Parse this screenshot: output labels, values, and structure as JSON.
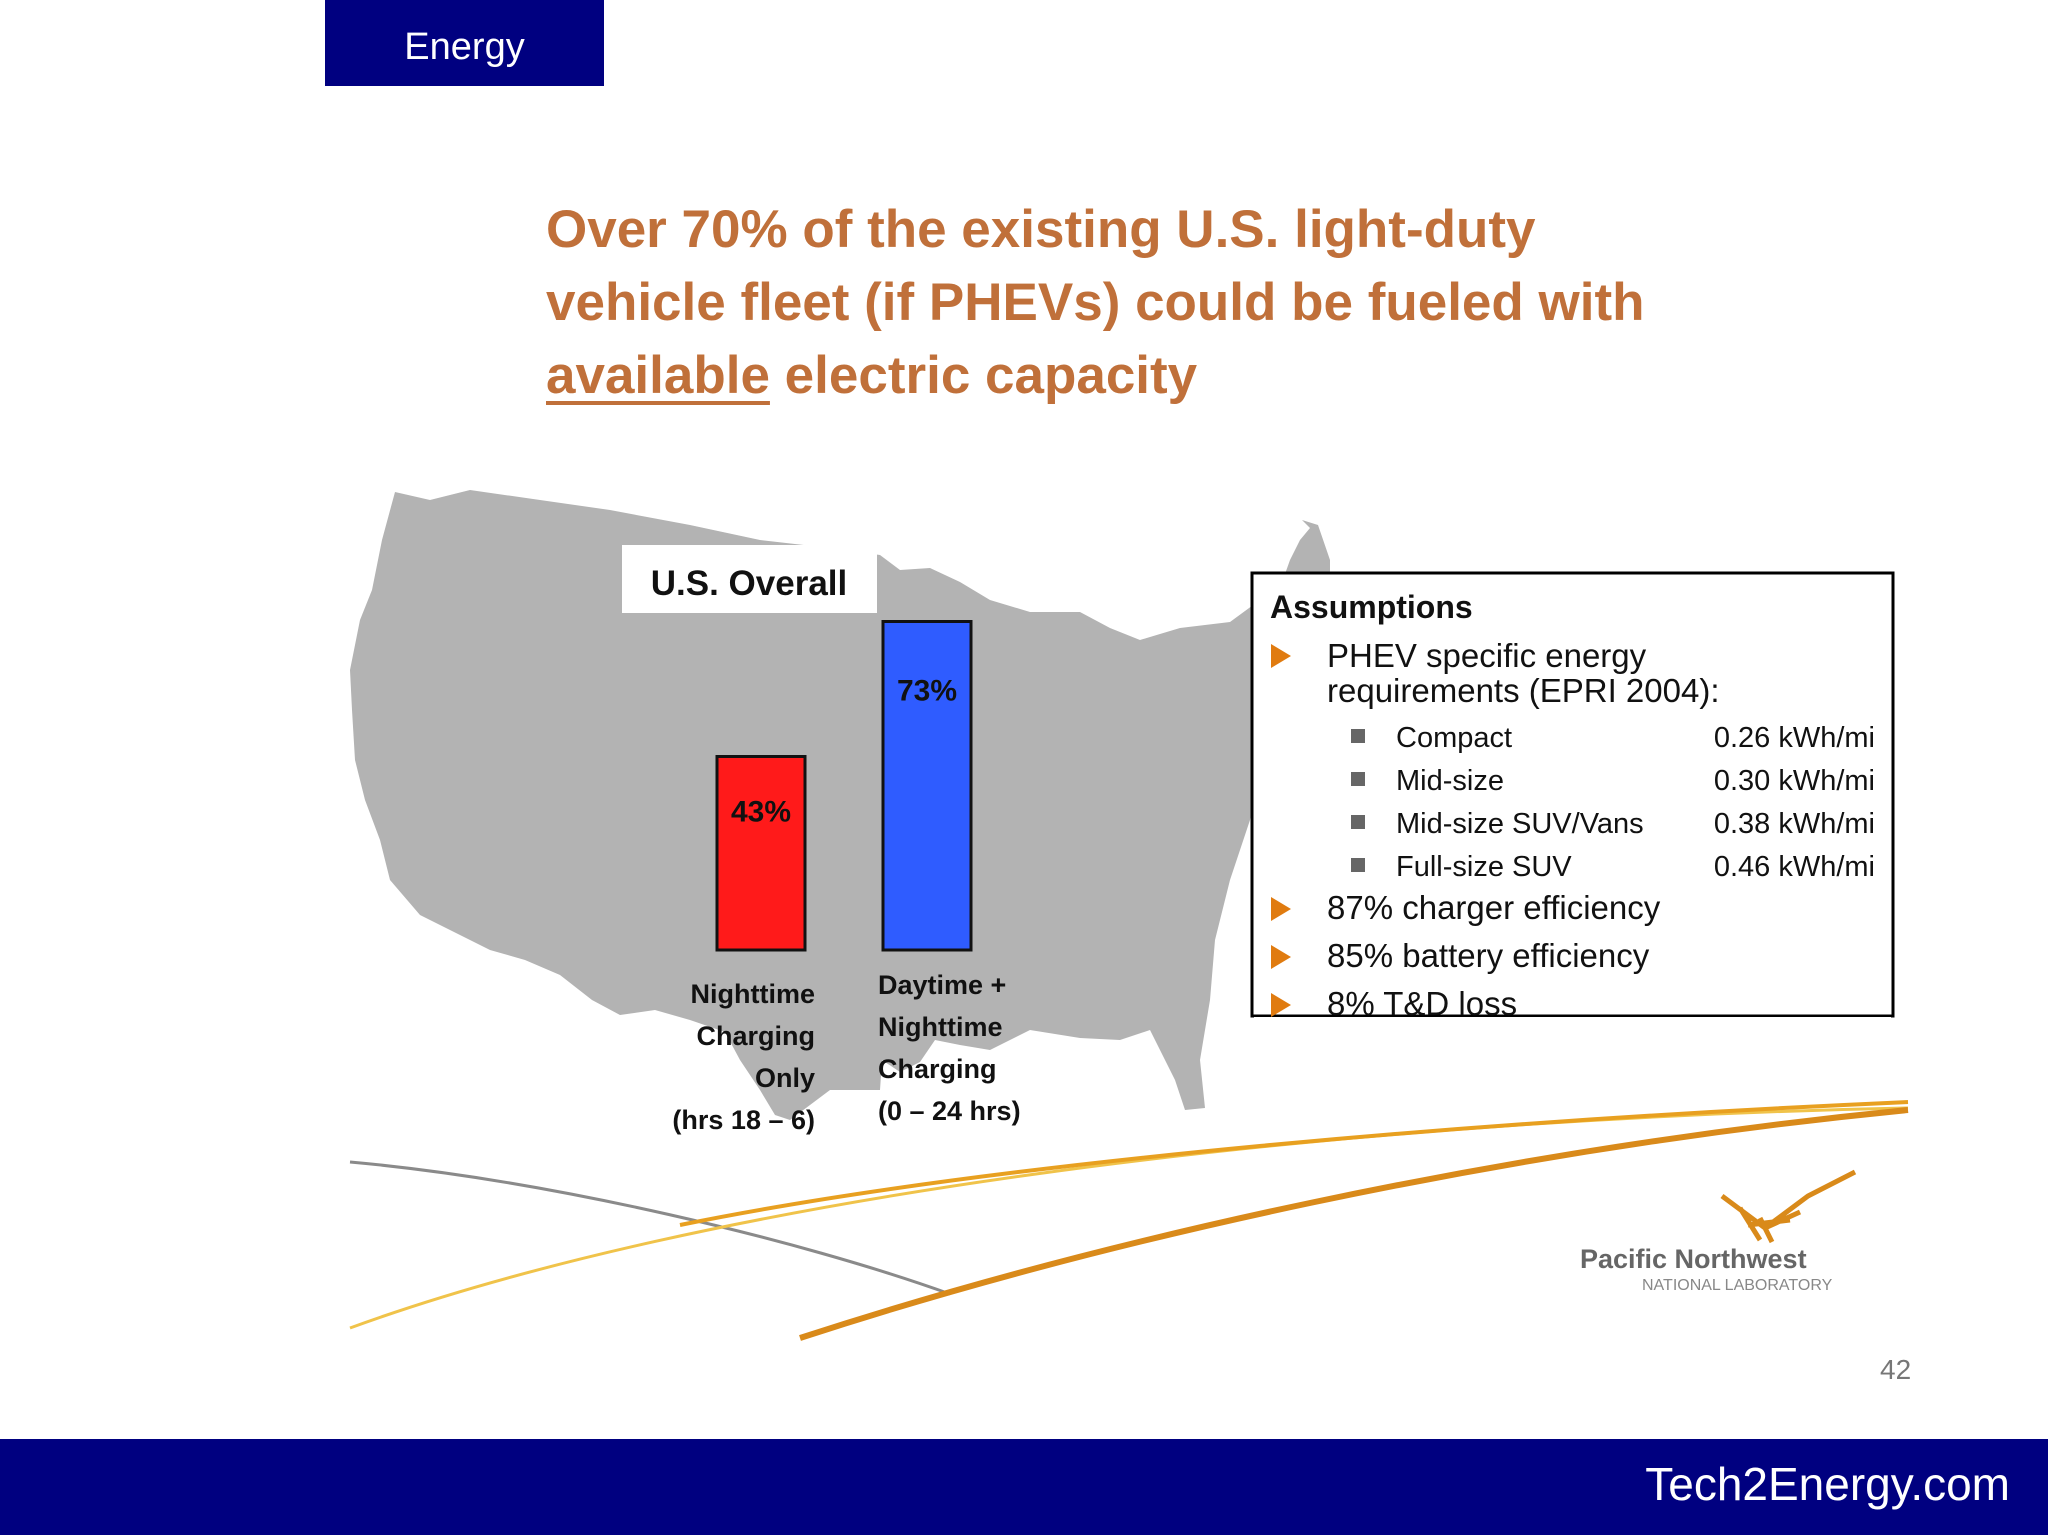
{
  "header": {
    "tag_label": "Energy"
  },
  "slide": {
    "title_line1": "Over 70% of the existing U.S. light-duty",
    "title_line2": "vehicle fleet (if PHEVs) could be fueled with",
    "title_underlined": "available",
    "title_rest": " electric capacity",
    "page_number": "42"
  },
  "chart_data": {
    "type": "bar",
    "title": "U.S. Overall",
    "categories": [
      [
        "Nighttime",
        "Charging",
        "Only",
        "(hrs 18 – 6)"
      ],
      [
        "Daytime +",
        "Nighttime",
        "Charging",
        "(0 – 24 hrs)"
      ]
    ],
    "values": [
      43,
      73
    ],
    "value_labels": [
      "43%",
      "73%"
    ],
    "ylim": [
      0,
      100
    ],
    "colors": [
      "#ff1a1a",
      "#2f5cff"
    ],
    "background": "U.S. map silhouette"
  },
  "assumptions": {
    "heading": "Assumptions",
    "bullet_intro_line1": "PHEV specific energy",
    "bullet_intro_line2": "requirements (EPRI 2004):",
    "vehicles": [
      {
        "name": "Compact",
        "value": "0.26 kWh/mi"
      },
      {
        "name": "Mid-size",
        "value": "0.30 kWh/mi"
      },
      {
        "name": "Mid-size SUV/Vans",
        "value": "0.38 kWh/mi"
      },
      {
        "name": "Full-size SUV",
        "value": "0.46 kWh/mi"
      }
    ],
    "bullets": [
      "87% charger efficiency",
      "85% battery efficiency",
      "8% T&D loss"
    ]
  },
  "logo": {
    "name": "Pacific Northwest",
    "subtitle": "NATIONAL LABORATORY"
  },
  "footer": {
    "site": "Tech2Energy.com"
  },
  "colors": {
    "navy": "#000080",
    "title_orange": "#c0703a",
    "map_gray": "#b3b3b3",
    "bullet_orange": "#e07b10",
    "swoosh_gold": "#e8a020"
  }
}
